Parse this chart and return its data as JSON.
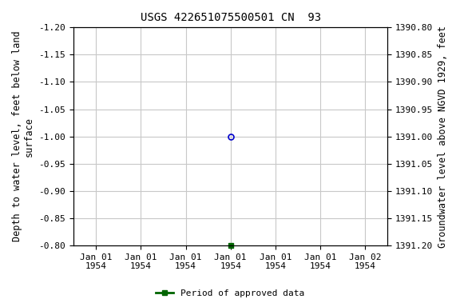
{
  "title": "USGS 422651075500501 CN  93",
  "ylabel_left": "Depth to water level, feet below land\nsurface",
  "ylabel_right": "Groundwater level above NGVD 1929, feet",
  "ylim_left": [
    -0.8,
    -1.2
  ],
  "ylim_right": [
    1391.2,
    1390.8
  ],
  "yticks_left": [
    -1.2,
    -1.15,
    -1.1,
    -1.05,
    -1.0,
    -0.95,
    -0.9,
    -0.85,
    -0.8
  ],
  "yticks_right": [
    1390.8,
    1390.85,
    1390.9,
    1390.95,
    1391.0,
    1391.05,
    1391.1,
    1391.15,
    1391.2
  ],
  "data_point_x": 3.5,
  "data_point_y": -1.0,
  "data_point_color": "#0000cc",
  "approved_x": 3.5,
  "approved_y": -0.8,
  "approved_color": "#006400",
  "legend_label": "Period of approved data",
  "legend_color": "#006400",
  "background_color": "#ffffff",
  "grid_color": "#c8c8c8",
  "title_fontsize": 10,
  "label_fontsize": 8.5,
  "tick_fontsize": 8,
  "xlim": [
    0,
    7
  ]
}
